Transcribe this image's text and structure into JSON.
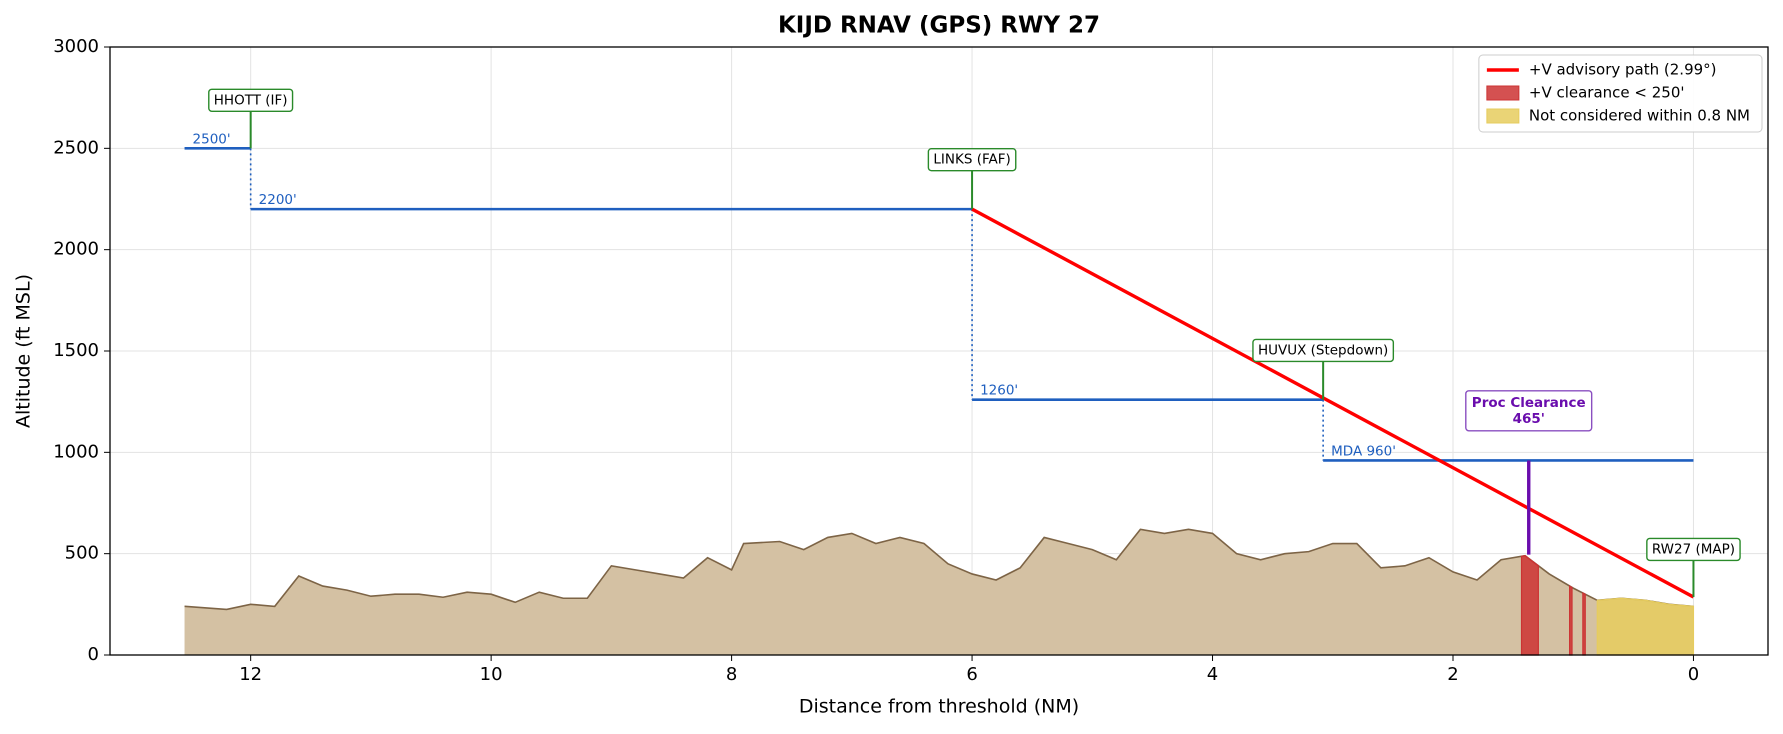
{
  "chart_data": {
    "type": "line",
    "title": "KIJD  RNAV (GPS) RWY 27",
    "xlabel": "Distance from threshold (NM)",
    "ylabel": "Altitude (ft MSL)",
    "xlim": [
      13.17,
      -0.62
    ],
    "ylim": [
      0,
      3000
    ],
    "xticks": [
      12,
      10,
      8,
      6,
      4,
      2,
      0
    ],
    "yticks": [
      0,
      500,
      1000,
      1500,
      2000,
      2500,
      3000
    ],
    "grid": true,
    "legend": "upper right",
    "terrain": {
      "color": "#d4c1a3",
      "edge": "#7d6446",
      "x": [
        12.55,
        12.2,
        12.0,
        11.8,
        11.6,
        11.4,
        11.2,
        11.0,
        10.8,
        10.6,
        10.4,
        10.2,
        10.0,
        9.8,
        9.6,
        9.4,
        9.2,
        9.0,
        8.8,
        8.6,
        8.4,
        8.2,
        8.0,
        7.9,
        7.6,
        7.4,
        7.2,
        7.0,
        6.8,
        6.6,
        6.4,
        6.2,
        6.0,
        5.8,
        5.6,
        5.4,
        5.2,
        5.0,
        4.8,
        4.6,
        4.4,
        4.2,
        4.0,
        3.8,
        3.6,
        3.4,
        3.2,
        3.0,
        2.8,
        2.6,
        2.4,
        2.2,
        2.0,
        1.8,
        1.6,
        1.4,
        1.2,
        1.0,
        0.8,
        0.6,
        0.4,
        0.2,
        0.0
      ],
      "values": [
        240,
        225,
        250,
        240,
        390,
        340,
        320,
        290,
        300,
        300,
        285,
        310,
        300,
        260,
        310,
        280,
        280,
        440,
        420,
        400,
        380,
        480,
        420,
        550,
        560,
        520,
        580,
        600,
        550,
        580,
        550,
        450,
        400,
        370,
        430,
        580,
        550,
        520,
        470,
        620,
        600,
        620,
        600,
        500,
        470,
        500,
        510,
        550,
        550,
        430,
        440,
        480,
        410,
        370,
        470,
        490,
        400,
        330,
        270,
        280,
        270,
        250,
        240
      ]
    },
    "series": [
      {
        "name": "+V advisory path (2.99°)",
        "color": "#ff0000",
        "x": [
          6,
          0
        ],
        "values": [
          2200,
          286
        ]
      }
    ],
    "regions": [
      {
        "name": "+V clearance < 250'",
        "color": "#cc3333",
        "spans": [
          [
            1.43,
            1.29
          ],
          [
            1.03,
            1.01
          ],
          [
            0.92,
            0.9
          ]
        ]
      },
      {
        "name": "Not considered within 0.8 NM",
        "color": "#e6cc5e",
        "spans": [
          [
            0.8,
            0
          ]
        ]
      }
    ],
    "altitudes": [
      {
        "x": [
          12.55,
          12
        ],
        "value": 2500,
        "label": "2500'"
      },
      {
        "x": [
          12,
          6
        ],
        "value": 2200,
        "label": "2200'"
      },
      {
        "x": [
          6,
          3.08
        ],
        "value": 1260,
        "label": "1260'"
      },
      {
        "x": [
          3.08,
          0
        ],
        "value": 960,
        "label": "MDA 960'"
      }
    ],
    "fixes": [
      {
        "label": "HHOTT (IF)",
        "x": 12,
        "base": 2500,
        "label_y": 2737
      },
      {
        "label": "LINKS (FAF)",
        "x": 6,
        "base": 2200,
        "label_y": 2444
      },
      {
        "label": "HUVUX (Stepdown)",
        "x": 3.08,
        "base": 1260,
        "label_y": 1503
      },
      {
        "label": "RW27 (MAP)",
        "x": 0,
        "base": 286,
        "label_y": 521
      }
    ],
    "proc_clearance": {
      "label": "Proc Clearance",
      "x": 1.37,
      "y0": 495,
      "y1": 960,
      "value": 465,
      "value_label": "465'",
      "label_y": 1205
    }
  }
}
